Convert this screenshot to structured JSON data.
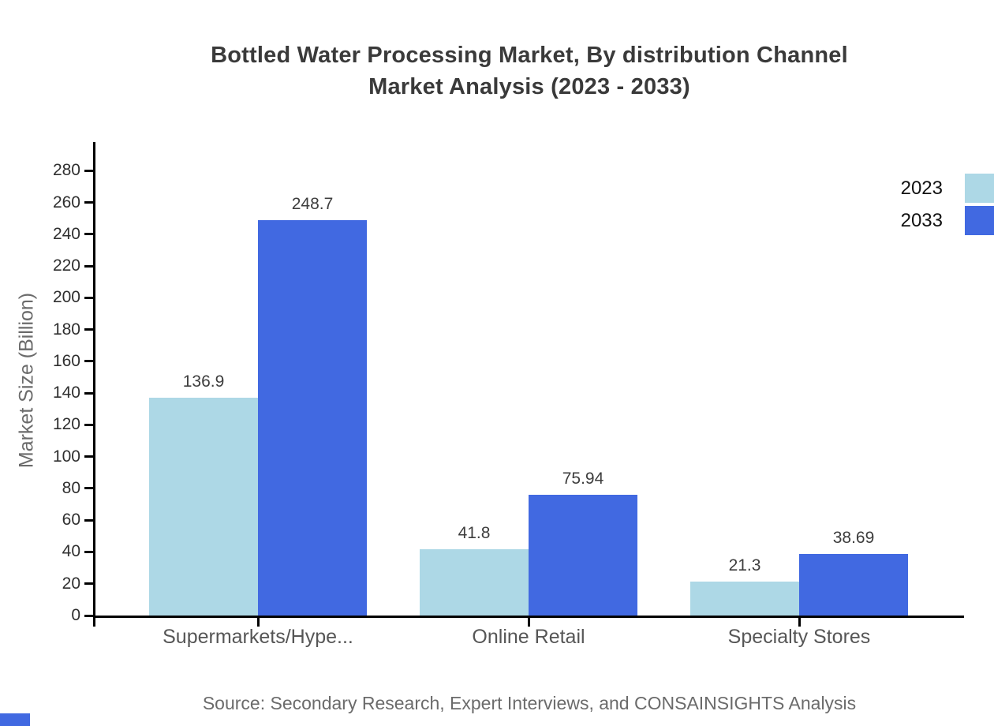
{
  "title": {
    "line1": "Bottled Water Processing Market, By distribution Channel",
    "line2": "Market Analysis (2023 - 2033)"
  },
  "chart_data": {
    "type": "bar",
    "title": "Bottled Water Processing Market, By distribution Channel Market Analysis (2023 - 2033)",
    "categories": [
      "Supermarkets/Hype...",
      "Online Retail",
      "Specialty Stores"
    ],
    "series": [
      {
        "name": "2023",
        "color": "#ADD8E6",
        "values": [
          136.9,
          41.8,
          21.3
        ]
      },
      {
        "name": "2033",
        "color": "#4169E1",
        "values": [
          248.7,
          75.94,
          38.69
        ]
      }
    ],
    "ylabel": "Market Size (Billion)",
    "xlabel": "",
    "ylim": [
      0,
      290
    ],
    "yticks": [
      0,
      20,
      40,
      60,
      80,
      100,
      120,
      140,
      160,
      180,
      200,
      220,
      240,
      260,
      280
    ],
    "grid": false,
    "legend_position": "top-right",
    "bar_value_labels": true
  },
  "source": "Source: Secondary Research, Expert Interviews, and CONSAINSIGHTS Analysis",
  "colors": {
    "series_2023": "#ADD8E6",
    "series_2033": "#4169E1",
    "axis": "#000000",
    "title_text": "#3a3a3a",
    "tick_text": "#2f2f2f",
    "category_text": "#565656",
    "muted_text": "#6b6b6b",
    "brand_mark": "#4169E1"
  }
}
